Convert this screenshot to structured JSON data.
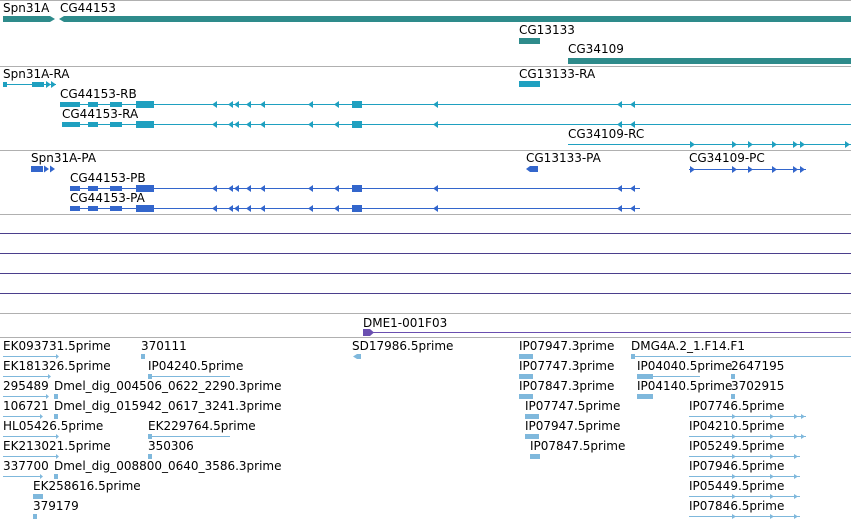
{
  "colors": {
    "gene": "#2E8B8B",
    "transcript": "#1FA0C0",
    "protein": "#3366CC",
    "track_line": "#4B3F8C",
    "misc": "#6A4FB0",
    "est": "#7FB8DC",
    "divider": "#B0B0B0"
  },
  "gene_track": {
    "items": [
      {
        "label": "Spn31A"
      },
      {
        "label": "CG44153"
      },
      {
        "label": "CG13133"
      },
      {
        "label": "CG34109"
      }
    ]
  },
  "transcript_track": {
    "items": [
      {
        "label": "Spn31A-RA"
      },
      {
        "label": "CG44153-RB"
      },
      {
        "label": "CG44153-RA"
      },
      {
        "label": "CG13133-RA"
      },
      {
        "label": "CG34109-RC"
      }
    ]
  },
  "protein_track": {
    "items": [
      {
        "label": "Spn31A-PA"
      },
      {
        "label": "CG44153-PB"
      },
      {
        "label": "CG44153-PA"
      },
      {
        "label": "CG13133-PA"
      },
      {
        "label": "CG34109-PC"
      }
    ]
  },
  "misc_track": {
    "items": [
      {
        "label": "DME1-001F03"
      }
    ]
  },
  "est_track": {
    "items": [
      {
        "label": "EK093731.5prime"
      },
      {
        "label": "370111"
      },
      {
        "label": "SD17986.5prime"
      },
      {
        "label": "IP07947.3prime"
      },
      {
        "label": "DMG4A.2_1.F14.F1"
      },
      {
        "label": "EK181326.5prime"
      },
      {
        "label": "IP04240.5prime"
      },
      {
        "label": "IP07747.3prime"
      },
      {
        "label": "IP04040.5prime"
      },
      {
        "label": "2647195"
      },
      {
        "label": "295489"
      },
      {
        "label": "Dmel_dig_004506_0622_2290.3prime"
      },
      {
        "label": "IP07847.3prime"
      },
      {
        "label": "IP04140.5prime"
      },
      {
        "label": "3702915"
      },
      {
        "label": "106721"
      },
      {
        "label": "Dmel_dig_015942_0617_3241.3prime"
      },
      {
        "label": "IP07747.5prime"
      },
      {
        "label": "IP07746.5prime"
      },
      {
        "label": "HL05426.5prime"
      },
      {
        "label": "EK229764.5prime"
      },
      {
        "label": "IP07947.5prime"
      },
      {
        "label": "IP04210.5prime"
      },
      {
        "label": "EK213021.5prime"
      },
      {
        "label": "350306"
      },
      {
        "label": "IP07847.5prime"
      },
      {
        "label": "IP05249.5prime"
      },
      {
        "label": "337700"
      },
      {
        "label": "Dmel_dig_008800_0640_3586.3prime"
      },
      {
        "label": "IP07946.5prime"
      },
      {
        "label": "EK258616.5prime"
      },
      {
        "label": "IP05449.5prime"
      },
      {
        "label": "379179"
      },
      {
        "label": "IP07846.5prime"
      }
    ]
  }
}
